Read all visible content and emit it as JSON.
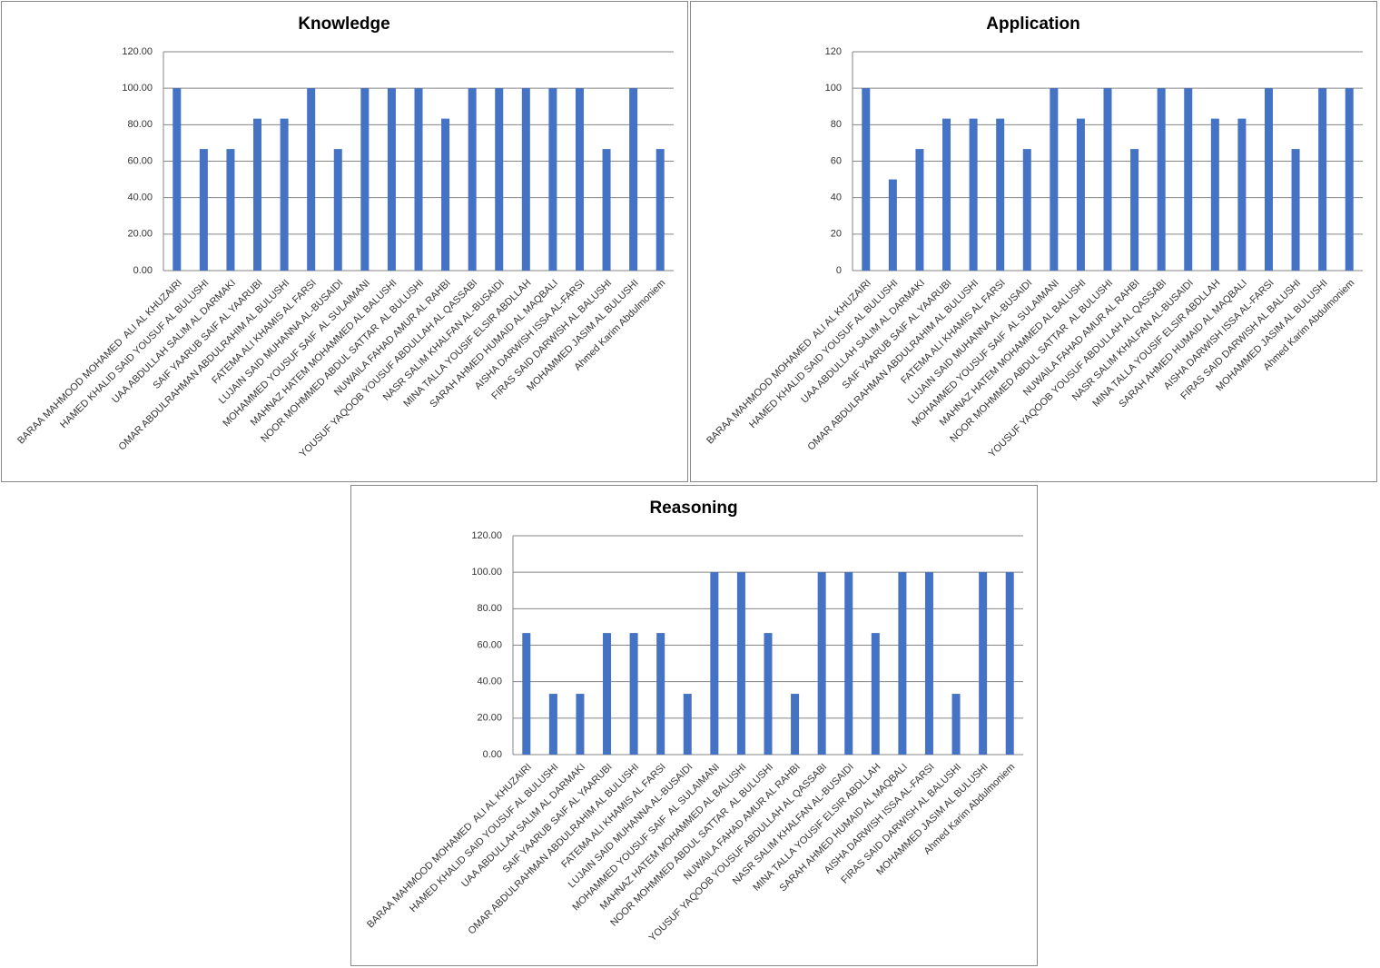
{
  "chart_data": [
    {
      "type": "bar",
      "title": "Knowledge",
      "categories": [
        "BARAA MAHMOOD MOHAMED  ALI AL KHUZAIRI",
        "HAMED KHALID SAID YOUSUF AL BULUSHI",
        "UAA ABDULLAH SALIM AL DARMAKI",
        "SAIF YAARUB SAIF AL YAARUBI",
        "OMAR ABDULRAHMAN ABDULRAHIM AL BULUSHI",
        "FATEMA ALI KHAMIS AL FARSI",
        "LUJAIN SAID MUHANNA AL-BUSAIDI",
        "MOHAMMED YOUSUF SAIF  AL SULAIMANI",
        "MAHNAZ HATEM MOHAMMED AL BALUSHI",
        "NOOR MOHMMED ABDUL SATTAR  AL BULUSHI",
        "NUWAILA FAHAD AMUR AL RAHBI",
        "YOUSUF YAQOOB YOUSUF ABDULLAH AL QASSABI",
        "NASR SALIM KHALFAN AL-BUSAIDI",
        "MINA TALLA YOUSIF ELSIR ABDLLAH",
        "SARAH AHMED HUMAID AL MAQBALI",
        "AISHA DARWISH ISSA AL-FARSI",
        "FIRAS SAID DARWISH AL BALUSHI",
        "MOHAMMED JASIM AL BULUSHI",
        "Ahmed Karim Abdulmoniem"
      ],
      "values": [
        100,
        66.67,
        66.67,
        83.33,
        83.33,
        100,
        66.67,
        100,
        100,
        100,
        83.33,
        100,
        100,
        100,
        100,
        100,
        66.67,
        100,
        66.67
      ],
      "color": "#4472c4",
      "ylim": [
        0,
        120
      ],
      "yticks": [
        {
          "value": 0,
          "label": "0.00"
        },
        {
          "value": 20,
          "label": "20.00"
        },
        {
          "value": 40,
          "label": "40.00"
        },
        {
          "value": 60,
          "label": "60.00"
        },
        {
          "value": 80,
          "label": "80.00"
        },
        {
          "value": 100,
          "label": "100.00"
        },
        {
          "value": 120,
          "label": "120.00"
        }
      ],
      "grid": true
    },
    {
      "type": "bar",
      "title": "Application",
      "categories": [
        "BARAA MAHMOOD MOHAMED  ALI AL KHUZAIRI",
        "HAMED KHALID SAID YOUSUF AL BULUSHI",
        "UAA ABDULLAH SALIM AL DARMAKI",
        "SAIF YAARUB SAIF AL YAARUBI",
        "OMAR ABDULRAHMAN ABDULRAHIM AL BULUSHI",
        "FATEMA ALI KHAMIS AL FARSI",
        "LUJAIN SAID MUHANNA AL-BUSAIDI",
        "MOHAMMED YOUSUF SAIF  AL SULAIMANI",
        "MAHNAZ HATEM MOHAMMED AL BALUSHI",
        "NOOR MOHMMED ABDUL SATTAR  AL BULUSHI",
        "NUWAILA FAHAD AMUR AL RAHBI",
        "YOUSUF YAQOOB YOUSUF ABDULLAH AL QASSABI",
        "NASR SALIM KHALFAN AL-BUSAIDI",
        "MINA TALLA YOUSIF ELSIR ABDLLAH",
        "SARAH AHMED HUMAID AL MAQBALI",
        "AISHA DARWISH ISSA AL-FARSI",
        "FIRAS SAID DARWISH AL BALUSHI",
        "MOHAMMED JASIM AL BULUSHI",
        "Ahmed Karim Abdulmoniem"
      ],
      "values": [
        100,
        50,
        66.67,
        83.33,
        83.33,
        83.33,
        66.67,
        100,
        83.33,
        100,
        66.67,
        100,
        100,
        83.33,
        83.33,
        100,
        66.67,
        100,
        100
      ],
      "color": "#4472c4",
      "ylim": [
        0,
        120
      ],
      "yticks": [
        0,
        20,
        40,
        60,
        80,
        100,
        120
      ],
      "grid": true
    },
    {
      "type": "bar",
      "title": "Reasoning",
      "categories": [
        "BARAA MAHMOOD MOHAMED  ALI AL KHUZAIRI",
        "HAMED KHALID SAID YOUSUF AL BULUSHI",
        "UAA ABDULLAH SALIM AL DARMAKI",
        "SAIF YAARUB SAIF AL YAARUBI",
        "OMAR ABDULRAHMAN ABDULRAHIM AL BULUSHI",
        "FATEMA ALI KHAMIS AL FARSI",
        "LUJAIN SAID MUHANNA AL-BUSAIDI",
        "MOHAMMED YOUSUF SAIF  AL SULAIMANI",
        "MAHNAZ HATEM MOHAMMED AL BALUSHI",
        "NOOR MOHMMED ABDUL SATTAR  AL BULUSHI",
        "NUWAILA FAHAD AMUR AL RAHBI",
        "YOUSUF YAQOOB YOUSUF ABDULLAH AL QASSABI",
        "NASR SALIM KHALFAN AL-BUSAIDI",
        "MINA TALLA YOUSIF ELSIR ABDLLAH",
        "SARAH AHMED HUMAID AL MAQBALI",
        "AISHA DARWISH ISSA AL-FARSI",
        "FIRAS SAID DARWISH AL BALUSHI",
        "MOHAMMED JASIM AL BULUSHI",
        "Ahmed Karim Abdulmoniem"
      ],
      "values": [
        66.67,
        33.33,
        33.33,
        66.67,
        66.67,
        66.67,
        33.33,
        100,
        100,
        66.67,
        33.33,
        100,
        100,
        66.67,
        100,
        100,
        33.33,
        100,
        100
      ],
      "color": "#4472c4",
      "ylim": [
        0,
        120
      ],
      "yticks": [
        {
          "value": 0,
          "label": "0.00"
        },
        {
          "value": 20,
          "label": "20.00"
        },
        {
          "value": 40,
          "label": "40.00"
        },
        {
          "value": 60,
          "label": "60.00"
        },
        {
          "value": 80,
          "label": "80.00"
        },
        {
          "value": 100,
          "label": "100.00"
        },
        {
          "value": 120,
          "label": "120.00"
        }
      ],
      "grid": true
    }
  ]
}
